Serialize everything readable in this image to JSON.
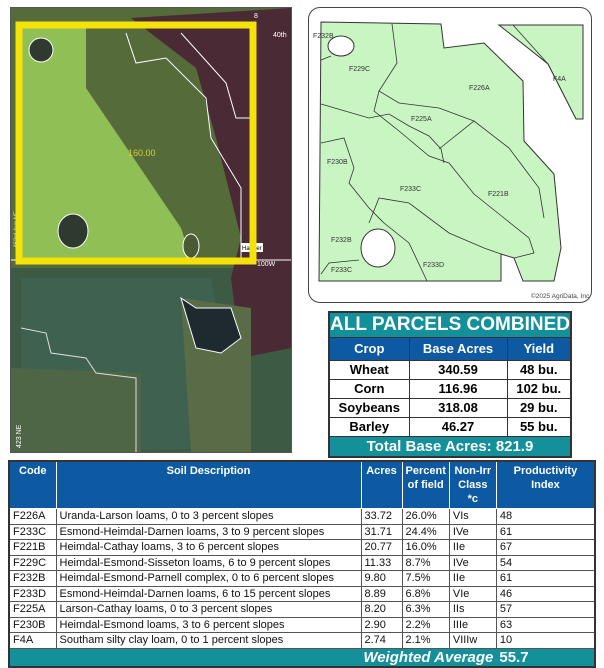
{
  "aerial_map": {
    "acreage_label": "160.00",
    "road_labels": [
      "40th",
      "100W",
      "8",
      "Hanger",
      "423 NE",
      "463rd Ave NE"
    ],
    "highlight_color": "#f5e20a"
  },
  "soil_map": {
    "labels": [
      "F232B",
      "F229C",
      "F226A",
      "F4A",
      "F225A",
      "F230B",
      "F233C",
      "F221B",
      "F232B",
      "F233D",
      "F233C"
    ],
    "copyright": "©2025 AgriData, Inc.",
    "fill_color": "#c8f5c2"
  },
  "parcels": {
    "title": "ALL PARCELS COMBINED",
    "headers": [
      "Crop",
      "Base Acres",
      "Yield"
    ],
    "rows": [
      [
        "Wheat",
        "340.59",
        "48 bu."
      ],
      [
        "Corn",
        "116.96",
        "102 bu."
      ],
      [
        "Soybeans",
        "318.08",
        "29 bu."
      ],
      [
        "Barley",
        "46.27",
        "55 bu."
      ]
    ],
    "total": "Total Base Acres:  821.9"
  },
  "soil_table": {
    "headers": [
      "Code",
      "Soil Description",
      "Acres",
      "Percent of field",
      "Non-Irr Class *c",
      "Productivity Index"
    ],
    "rows": [
      [
        "F226A",
        "Uranda-Larson loams, 0 to 3 percent slopes",
        "33.72",
        "26.0%",
        "VIs",
        "48"
      ],
      [
        "F233C",
        "Esmond-Heimdal-Darnen loams, 3 to 9 percent slopes",
        "31.71",
        "24.4%",
        "IVe",
        "61"
      ],
      [
        "F221B",
        "Heimdal-Cathay loams, 3 to 6 percent slopes",
        "20.77",
        "16.0%",
        "IIe",
        "67"
      ],
      [
        "F229C",
        "Heimdal-Esmond-Sisseton loams, 6 to 9 percent slopes",
        "11.33",
        "8.7%",
        "IVe",
        "54"
      ],
      [
        "F232B",
        "Heimdal-Esmond-Parnell complex, 0 to 6 percent slopes",
        "9.80",
        "7.5%",
        "IIe",
        "61"
      ],
      [
        "F233D",
        "Esmond-Heimdal-Darnen loams, 6 to 15 percent slopes",
        "8.89",
        "6.8%",
        "VIe",
        "46"
      ],
      [
        "F225A",
        "Larson-Cathay loams, 0 to 3 percent slopes",
        "8.20",
        "6.3%",
        "IIs",
        "57"
      ],
      [
        "F230B",
        "Heimdal-Esmond loams, 3 to 6 percent slopes",
        "2.90",
        "2.2%",
        "IIIe",
        "63"
      ],
      [
        "F4A",
        "Southam silty clay loam, 0 to 1 percent slopes",
        "2.74",
        "2.1%",
        "VIIIw",
        "10"
      ]
    ],
    "weighted_average_label": "Weighted Average",
    "weighted_average_value": "55.7"
  }
}
